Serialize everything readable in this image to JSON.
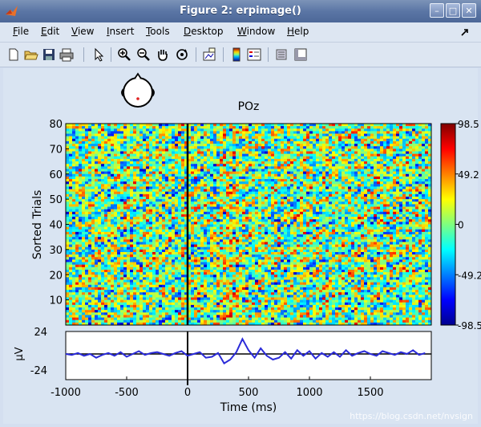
{
  "window": {
    "title": "Figure 2:  erpimage()",
    "buttons": [
      "–",
      "□",
      "✕"
    ]
  },
  "menu": [
    "File",
    "Edit",
    "View",
    "Insert",
    "Tools",
    "Desktop",
    "Window",
    "Help"
  ],
  "toolbar_icons": [
    "new-file-icon",
    "open-folder-icon",
    "save-icon",
    "print-icon",
    "pointer-icon",
    "zoom-in-icon",
    "zoom-out-icon",
    "pan-hand-icon",
    "rotate-icon",
    "data-cursor-icon",
    "colorbar-icon",
    "legend-icon",
    "hide-plot-tools-icon",
    "show-plot-tools-icon"
  ],
  "figure": {
    "channel_title": "POz",
    "watermark": "https://blog.csdn.net/nvsign"
  },
  "chart_data": [
    {
      "type": "heatmap",
      "ylabel": "Sorted Trials",
      "xlim": [
        -1000,
        2000
      ],
      "ylim": [
        0,
        80
      ],
      "y_ticks": [
        10,
        20,
        30,
        40,
        50,
        60,
        70,
        80
      ],
      "vertical_line_at": 0,
      "colorbar": {
        "ticks": [
          "98.5",
          "49.2",
          "0",
          "-49.2",
          "-98.5"
        ],
        "colormap": "jet"
      }
    },
    {
      "type": "line",
      "xlabel": "Time (ms)",
      "ylabel": "μV",
      "xlim": [
        -1000,
        2000
      ],
      "ylim": [
        -24,
        24
      ],
      "x_ticks": [
        -1000,
        -500,
        0,
        500,
        1000,
        1500
      ],
      "y_ticks": [
        "24",
        "-24"
      ],
      "series_color": "#2b2bd9",
      "x": [
        -1000,
        -950,
        -900,
        -850,
        -800,
        -750,
        -700,
        -650,
        -600,
        -550,
        -500,
        -450,
        -400,
        -350,
        -300,
        -250,
        -200,
        -150,
        -100,
        -50,
        0,
        50,
        100,
        150,
        200,
        250,
        300,
        350,
        400,
        450,
        500,
        550,
        600,
        650,
        700,
        750,
        800,
        850,
        900,
        950,
        1000,
        1050,
        1100,
        1150,
        1200,
        1250,
        1300,
        1350,
        1400,
        1450,
        1500,
        1550,
        1600,
        1650,
        1700,
        1750,
        1800,
        1850,
        1900,
        1950
      ],
      "values": [
        0,
        -1,
        1,
        -2,
        0,
        -4,
        -1,
        1,
        -2,
        2,
        -3,
        0,
        3,
        -1,
        1,
        2,
        0,
        -2,
        1,
        3,
        -2,
        0,
        2,
        -4,
        -3,
        1,
        -10,
        -6,
        2,
        16,
        4,
        -4,
        6,
        -2,
        -6,
        -4,
        2,
        -5,
        4,
        -2,
        3,
        -5,
        1,
        -3,
        2,
        -3,
        4,
        -2,
        1,
        3,
        0,
        -2,
        3,
        1,
        -1,
        2,
        0,
        4,
        -1,
        1
      ]
    }
  ]
}
